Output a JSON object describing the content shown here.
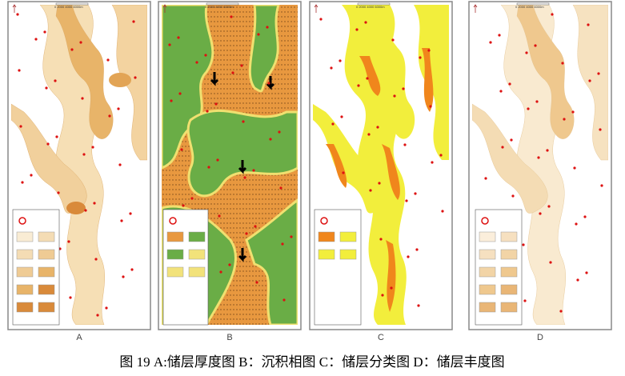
{
  "panels": [
    {
      "label": "A",
      "scale": "0   2000   4000   6000m"
    },
    {
      "label": "B",
      "scale": "0   2000   4000   6000m"
    },
    {
      "label": "C",
      "scale": "0   2000   4000   6000m"
    },
    {
      "label": "D",
      "scale": "0   2000   4000   6000m"
    }
  ],
  "caption": "图 19 A:储层厚度图  B：沉积相图  C：储层分类图  D：储层丰度图"
}
